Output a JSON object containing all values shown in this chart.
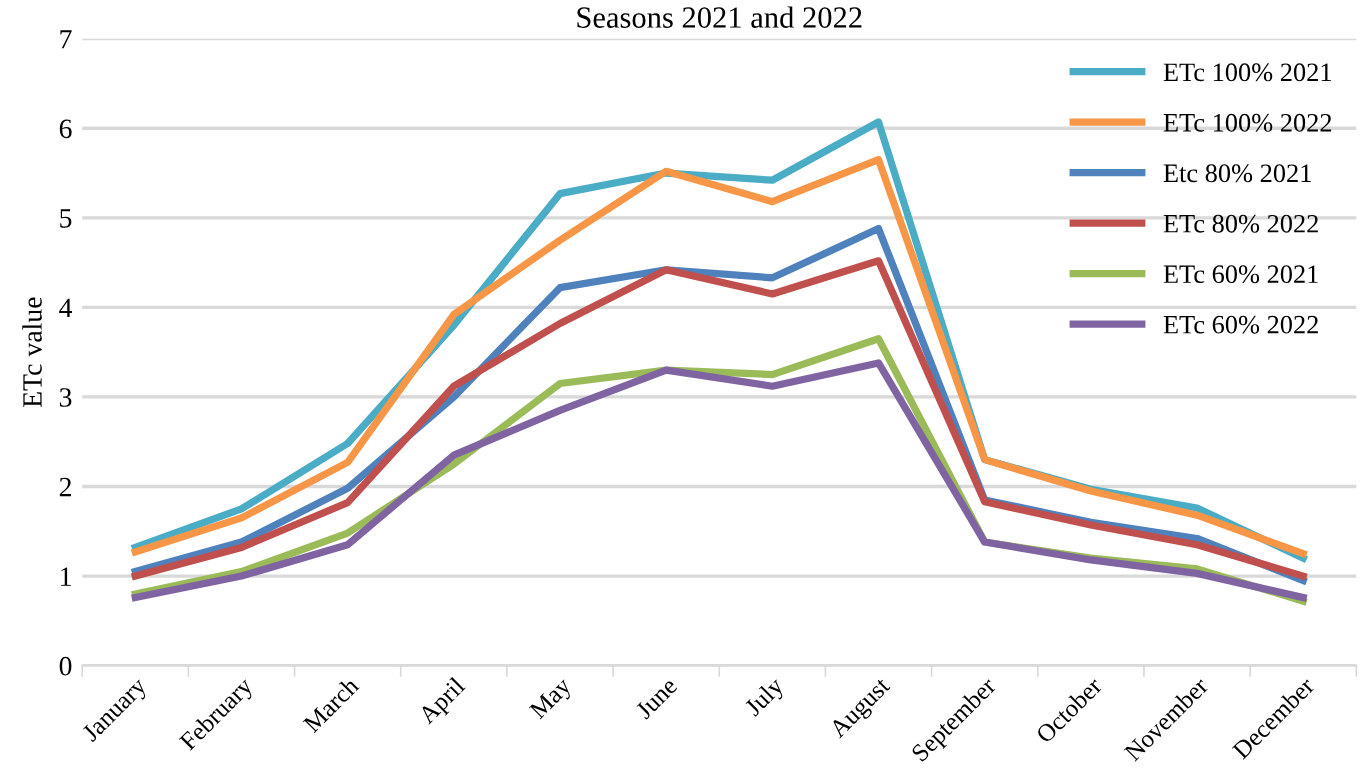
{
  "chart_data": {
    "type": "line",
    "title": "Seasons 2021 and 2022",
    "ylabel": "ETc value",
    "categories": [
      "January",
      "February",
      "March",
      "April",
      "May",
      "June",
      "July",
      "August",
      "September",
      "October",
      "November",
      "December"
    ],
    "series": [
      {
        "name": "ETc 100% 2021",
        "color": "#4bacc6",
        "values": [
          1.32,
          1.75,
          2.48,
          3.8,
          5.27,
          5.5,
          5.42,
          6.07,
          2.3,
          1.97,
          1.76,
          1.2
        ]
      },
      {
        "name": "ETc 100% 2022",
        "color": "#f79646",
        "values": [
          1.27,
          1.65,
          2.27,
          3.92,
          4.75,
          5.52,
          5.18,
          5.65,
          2.3,
          1.95,
          1.68,
          1.25
        ]
      },
      {
        "name": "Etc 80% 2021",
        "color": "#4f81bd",
        "values": [
          1.05,
          1.38,
          1.98,
          3.0,
          4.22,
          4.42,
          4.33,
          4.88,
          1.85,
          1.6,
          1.42,
          0.95
        ]
      },
      {
        "name": "ETc 80% 2022",
        "color": "#c0504d",
        "values": [
          1.0,
          1.32,
          1.82,
          3.12,
          3.82,
          4.42,
          4.15,
          4.52,
          1.83,
          1.57,
          1.35,
          1.0
        ]
      },
      {
        "name": "ETc 60% 2021",
        "color": "#9bbb59",
        "values": [
          0.8,
          1.05,
          1.48,
          2.25,
          3.15,
          3.3,
          3.25,
          3.65,
          1.38,
          1.2,
          1.08,
          0.72
        ]
      },
      {
        "name": "ETc 60% 2022",
        "color": "#8064a2",
        "values": [
          0.76,
          1.0,
          1.35,
          2.35,
          2.85,
          3.3,
          3.12,
          3.38,
          1.38,
          1.18,
          1.03,
          0.76
        ]
      }
    ],
    "ylim": [
      0,
      7
    ],
    "yticks": [
      0,
      1,
      2,
      3,
      4,
      5,
      6,
      7
    ],
    "grid": "y",
    "legend": "top right",
    "marker": "none",
    "line_style": "solid"
  }
}
